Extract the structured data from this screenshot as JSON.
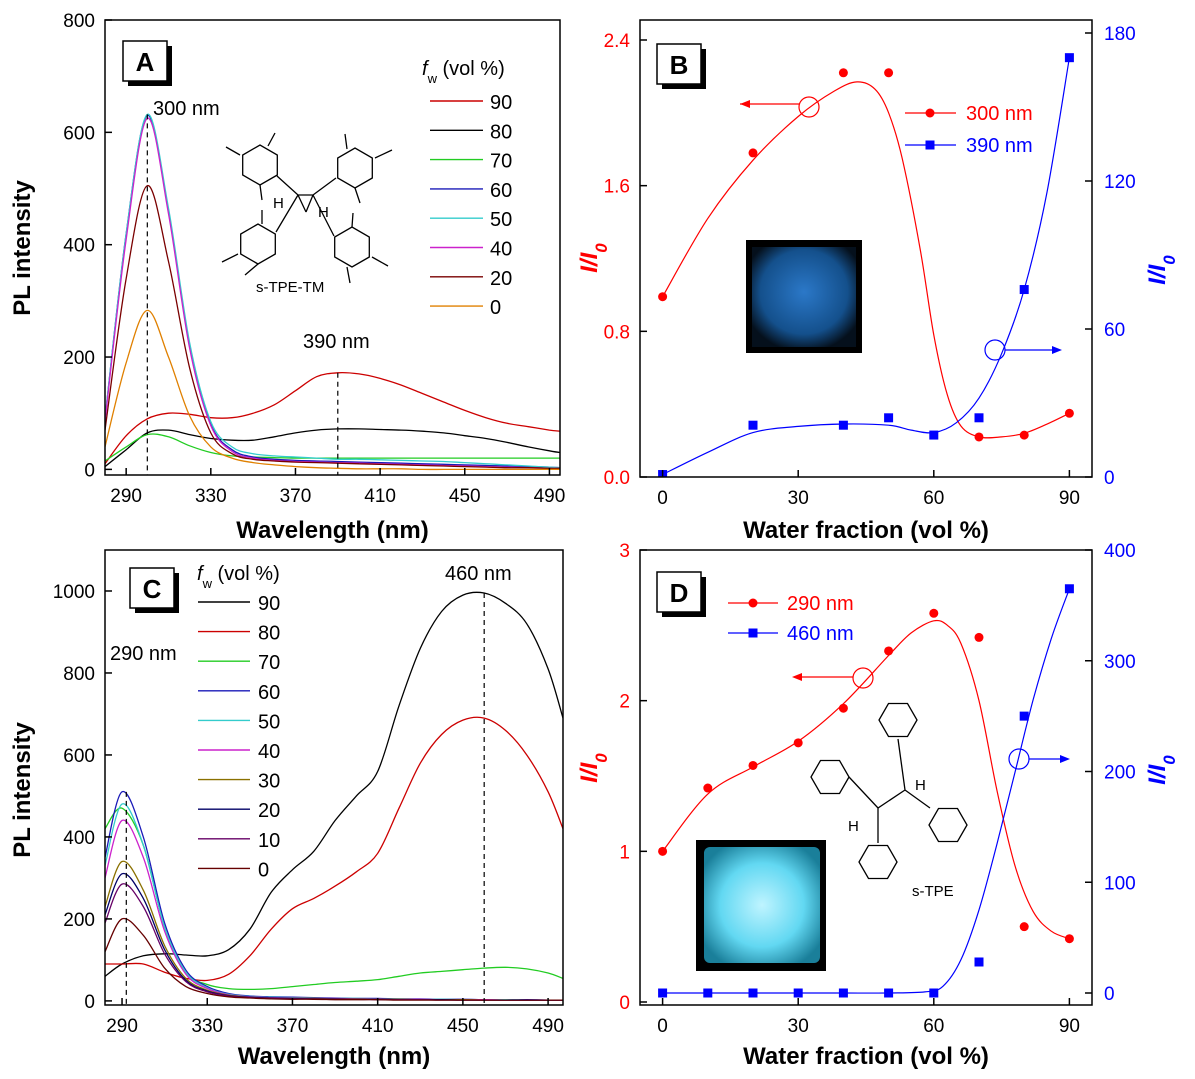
{
  "chart_data": [
    {
      "panel": "A",
      "type": "line",
      "xlabel": "Wavelength (nm)",
      "ylabel": "PL intensity",
      "xlim": [
        280,
        495
      ],
      "ylim": [
        -10,
        800
      ],
      "xticks": [
        290,
        330,
        370,
        410,
        450,
        490
      ],
      "yticks": [
        0,
        200,
        400,
        600,
        800
      ],
      "legend_title": "f_w (vol %)",
      "legend_title_main": "f",
      "legend_title_sub": "w",
      "legend_title_rest": " (vol %)",
      "legend_position": "top-right",
      "annotations": [
        "300 nm",
        "390 nm"
      ],
      "molecule_label": "s-TPE-TM",
      "x": [
        280,
        290,
        300,
        310,
        320,
        330,
        340,
        350,
        360,
        370,
        380,
        390,
        400,
        410,
        420,
        430,
        440,
        450,
        460,
        470,
        480,
        490,
        495
      ],
      "series": [
        {
          "name": "90",
          "color": "#cc0000",
          "values": [
            10,
            60,
            90,
            100,
            98,
            92,
            92,
            100,
            115,
            140,
            165,
            172,
            170,
            162,
            150,
            135,
            120,
            105,
            92,
            82,
            76,
            70,
            68
          ]
        },
        {
          "name": "80",
          "color": "#000000",
          "values": [
            5,
            35,
            65,
            70,
            62,
            55,
            52,
            52,
            58,
            65,
            70,
            72,
            72,
            71,
            70,
            68,
            65,
            60,
            55,
            48,
            40,
            33,
            30
          ]
        },
        {
          "name": "70",
          "color": "#22cc22",
          "values": [
            15,
            40,
            62,
            58,
            42,
            30,
            24,
            22,
            21,
            20,
            20,
            20,
            20,
            20,
            20,
            20,
            20,
            20,
            20,
            20,
            20,
            20,
            20
          ]
        },
        {
          "name": "60",
          "color": "#1a1ab8",
          "values": [
            90,
            420,
            630,
            460,
            220,
            80,
            35,
            22,
            18,
            16,
            15,
            14,
            13,
            12,
            11,
            10,
            9,
            8,
            7,
            6,
            5,
            4,
            3
          ]
        },
        {
          "name": "50",
          "color": "#33cccc",
          "values": [
            90,
            420,
            632,
            465,
            225,
            85,
            40,
            28,
            24,
            22,
            20,
            18,
            18,
            17,
            16,
            15,
            14,
            12,
            10,
            8,
            6,
            4,
            3
          ]
        },
        {
          "name": "40",
          "color": "#cc22cc",
          "values": [
            85,
            410,
            625,
            455,
            215,
            78,
            32,
            20,
            16,
            14,
            13,
            12,
            11,
            10,
            9,
            8,
            7,
            6,
            5,
            4,
            3,
            2,
            2
          ]
        },
        {
          "name": "20",
          "color": "#7a0000",
          "values": [
            70,
            340,
            505,
            370,
            180,
            65,
            28,
            18,
            15,
            13,
            12,
            11,
            10,
            9,
            8,
            7,
            6,
            5,
            4,
            3,
            3,
            2,
            2
          ]
        },
        {
          "name": "0",
          "color": "#e08000",
          "values": [
            40,
            190,
            283,
            200,
            95,
            40,
            20,
            12,
            8,
            5,
            3,
            2,
            1,
            1,
            1,
            0,
            0,
            0,
            0,
            0,
            0,
            0,
            0
          ]
        }
      ]
    },
    {
      "panel": "B",
      "type": "scatter",
      "xlabel": "Water fraction (vol %)",
      "ylabel_left_main": "I/I",
      "ylabel_left_sub": "0",
      "ylabel_right_main": "I/I",
      "ylabel_right_sub": "0",
      "xlim": [
        -5,
        95
      ],
      "ylim_left": [
        0,
        2.4
      ],
      "ylim_right": [
        0,
        180
      ],
      "xticks": [
        0,
        30,
        60,
        90
      ],
      "yticks_left": [
        "0.0",
        "0.8",
        "1.6",
        "2.4"
      ],
      "yticks_right": [
        0,
        60,
        120,
        180
      ],
      "legend_position": "top-right",
      "series": [
        {
          "name": "300 nm",
          "axis": "left",
          "color": "#ff0000",
          "marker": "circle",
          "x": [
            0,
            20,
            40,
            50,
            70,
            80,
            90
          ],
          "values": [
            0.99,
            1.78,
            2.22,
            2.22,
            0.22,
            0.23,
            0.35
          ],
          "fit_x": [
            0,
            10,
            20,
            30,
            38,
            43,
            47,
            50,
            53,
            57,
            60,
            63,
            66,
            70,
            75,
            80,
            85,
            90
          ],
          "fit_y": [
            0.99,
            1.42,
            1.74,
            1.98,
            2.12,
            2.17,
            2.13,
            2.0,
            1.75,
            1.25,
            0.78,
            0.45,
            0.28,
            0.22,
            0.22,
            0.24,
            0.29,
            0.35
          ]
        },
        {
          "name": "390 nm",
          "axis": "right",
          "color": "#0000ff",
          "marker": "square",
          "x": [
            0,
            20,
            40,
            50,
            60,
            70,
            80,
            90
          ],
          "values": [
            1,
            21,
            21,
            24,
            17,
            24,
            76,
            170
          ],
          "fit_x": [
            0,
            10,
            20,
            30,
            40,
            50,
            55,
            60,
            65,
            70,
            75,
            80,
            85,
            90
          ],
          "fit_y": [
            1,
            10,
            18,
            20.5,
            21.5,
            21,
            19,
            18,
            22,
            32,
            50,
            76,
            115,
            170
          ]
        }
      ]
    },
    {
      "panel": "C",
      "type": "line",
      "xlabel": "Wavelength (nm)",
      "ylabel": "PL intensity",
      "xlim": [
        282,
        497
      ],
      "ylim": [
        -10,
        1100
      ],
      "xticks": [
        290,
        330,
        370,
        410,
        450,
        490
      ],
      "yticks": [
        0,
        200,
        400,
        600,
        800,
        1000
      ],
      "legend_title": "f_w (vol %)",
      "legend_title_main": "f",
      "legend_title_sub": "w",
      "legend_title_rest": " (vol %)",
      "legend_position": "top-left",
      "annotations": [
        "290 nm",
        "460 nm"
      ],
      "x": [
        282,
        290,
        300,
        310,
        320,
        330,
        340,
        350,
        360,
        370,
        380,
        390,
        400,
        410,
        420,
        430,
        440,
        450,
        460,
        470,
        480,
        490,
        497
      ],
      "series": [
        {
          "name": "90",
          "color": "#000000",
          "values": [
            60,
            90,
            110,
            115,
            112,
            110,
            125,
            175,
            265,
            320,
            365,
            440,
            500,
            560,
            720,
            860,
            950,
            990,
            995,
            970,
            920,
            810,
            690
          ]
        },
        {
          "name": "80",
          "color": "#cc0000",
          "values": [
            90,
            90,
            90,
            70,
            55,
            50,
            65,
            110,
            175,
            225,
            250,
            280,
            315,
            360,
            470,
            580,
            650,
            685,
            690,
            660,
            600,
            510,
            420
          ]
        },
        {
          "name": "70",
          "color": "#22cc22",
          "values": [
            420,
            470,
            380,
            180,
            70,
            40,
            30,
            28,
            30,
            35,
            40,
            45,
            48,
            52,
            60,
            68,
            72,
            76,
            80,
            82,
            78,
            68,
            55
          ]
        },
        {
          "name": "60",
          "color": "#1a1ab8",
          "values": [
            350,
            510,
            400,
            190,
            75,
            35,
            18,
            12,
            10,
            9,
            8,
            7,
            6,
            6,
            5,
            5,
            4,
            4,
            3,
            3,
            3,
            2,
            2
          ]
        },
        {
          "name": "50",
          "color": "#33cccc",
          "values": [
            330,
            480,
            380,
            180,
            70,
            32,
            16,
            11,
            9,
            8,
            7,
            6,
            6,
            5,
            5,
            4,
            4,
            3,
            3,
            3,
            2,
            2,
            2
          ]
        },
        {
          "name": "40",
          "color": "#cc22cc",
          "values": [
            300,
            440,
            350,
            170,
            65,
            30,
            15,
            10,
            8,
            7,
            6,
            6,
            5,
            5,
            4,
            4,
            3,
            3,
            3,
            2,
            2,
            2,
            2
          ]
        },
        {
          "name": "30",
          "color": "#8a7000",
          "values": [
            230,
            340,
            270,
            135,
            55,
            26,
            14,
            9,
            7,
            6,
            6,
            5,
            5,
            4,
            4,
            3,
            3,
            3,
            2,
            2,
            2,
            2,
            2
          ]
        },
        {
          "name": "20",
          "color": "#000066",
          "values": [
            210,
            310,
            250,
            125,
            50,
            24,
            13,
            9,
            7,
            6,
            5,
            5,
            4,
            4,
            3,
            3,
            3,
            2,
            2,
            2,
            2,
            2,
            2
          ]
        },
        {
          "name": "10",
          "color": "#660066",
          "values": [
            190,
            285,
            230,
            115,
            47,
            22,
            12,
            8,
            6,
            5,
            5,
            4,
            4,
            3,
            3,
            3,
            2,
            2,
            2,
            2,
            2,
            2,
            2
          ]
        },
        {
          "name": "0",
          "color": "#660000",
          "values": [
            120,
            200,
            160,
            80,
            35,
            18,
            10,
            7,
            5,
            4,
            4,
            3,
            3,
            3,
            2,
            2,
            2,
            2,
            2,
            2,
            2,
            2,
            2
          ]
        }
      ]
    },
    {
      "panel": "D",
      "type": "scatter",
      "xlabel": "Water fraction (vol %)",
      "ylabel_left_main": "I/I",
      "ylabel_left_sub": "0",
      "ylabel_right_main": "I/I",
      "ylabel_right_sub": "0",
      "xlim": [
        -5,
        95
      ],
      "ylim_left": [
        0,
        3
      ],
      "ylim_right": [
        0,
        400
      ],
      "xticks": [
        0,
        30,
        60,
        90
      ],
      "yticks_left": [
        0,
        1,
        2,
        3
      ],
      "yticks_right": [
        0,
        100,
        200,
        300,
        400
      ],
      "legend_position": "top-left",
      "molecule_label": "s-TPE",
      "series": [
        {
          "name": "290 nm",
          "axis": "left",
          "color": "#ff0000",
          "marker": "circle",
          "x": [
            0,
            10,
            20,
            30,
            40,
            50,
            60,
            70,
            80,
            90
          ],
          "values": [
            1.0,
            1.42,
            1.57,
            1.72,
            1.95,
            2.33,
            2.58,
            2.42,
            0.5,
            0.42
          ],
          "fit_x": [
            0,
            10,
            20,
            30,
            40,
            50,
            55,
            60,
            63,
            66,
            70,
            74,
            78,
            82,
            86,
            90
          ],
          "fit_y": [
            1.0,
            1.38,
            1.56,
            1.73,
            1.98,
            2.3,
            2.45,
            2.53,
            2.5,
            2.38,
            2.0,
            1.4,
            0.9,
            0.6,
            0.47,
            0.42
          ]
        },
        {
          "name": "460 nm",
          "axis": "right",
          "color": "#0000ff",
          "marker": "square",
          "x": [
            0,
            10,
            20,
            30,
            40,
            50,
            60,
            70,
            80,
            90
          ],
          "values": [
            0,
            0,
            0,
            0,
            0,
            0,
            0,
            28,
            250,
            365
          ],
          "fit_x": [
            0,
            10,
            20,
            30,
            40,
            50,
            58,
            62,
            66,
            70,
            74,
            78,
            82,
            86,
            90
          ],
          "fit_y": [
            0,
            0,
            0,
            0,
            0,
            0,
            1,
            6,
            30,
            75,
            135,
            200,
            265,
            320,
            365
          ]
        }
      ]
    }
  ]
}
